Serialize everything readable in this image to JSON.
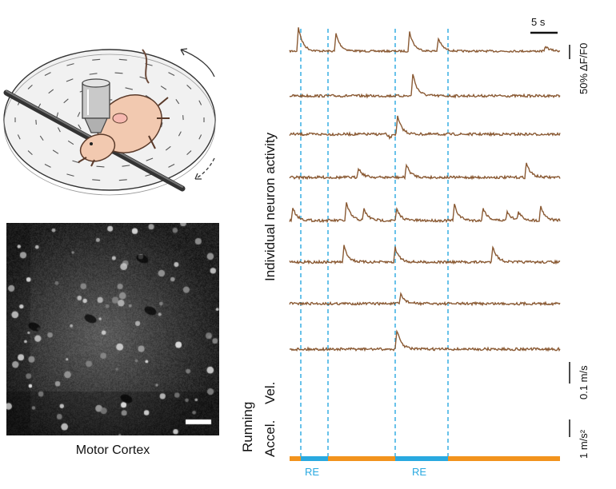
{
  "illustration": {
    "subject_icon": "mouse-on-treadmill-under-objective-illustration",
    "arrow_solid_icon": "curved-arrow-icon",
    "arrow_dashed_icon": "curved-dashed-arrow-icon"
  },
  "micrograph": {
    "caption": "Motor Cortex",
    "scale_bar_icon": "white-scale-bar-icon"
  },
  "traces": {
    "y_label": "Individual neuron activity",
    "neuron_color": "#8a5a34",
    "behavior_color": "#111111",
    "time_scale_label": "5 s",
    "amp_scale_label": "50% ΔF/F0",
    "neuron_count": 8
  },
  "behavior": {
    "group_label": "Running",
    "vel_label": "Vel.",
    "accel_label": "Accel.",
    "vel_scale_label": "0.1 m/s",
    "accel_scale_label": "1 m/s²"
  },
  "epochs": {
    "re_color": "#29a9e0",
    "rest_color": "#f2931d",
    "labels": [
      "RE",
      "RE"
    ]
  }
}
